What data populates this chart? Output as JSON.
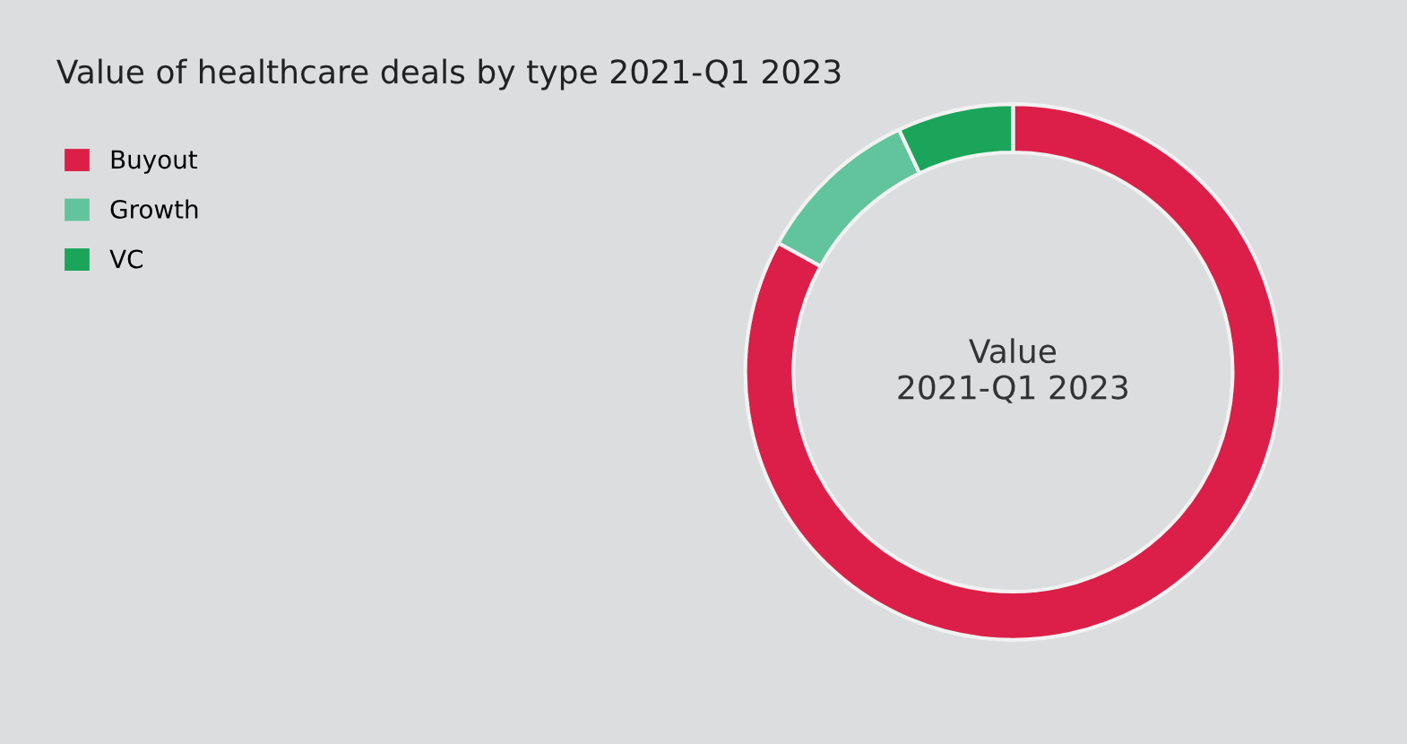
{
  "chart_data": {
    "type": "donut",
    "title": "Value of healthcare deals by type 2021-Q1 2023",
    "categories": [
      "Buyout",
      "Growth",
      "VC"
    ],
    "values": [
      83,
      10,
      7
    ],
    "colors": [
      "#dc1f48",
      "#62c49c",
      "#1aa55a"
    ],
    "annotations": [
      "Value\n2021-Q1 2023"
    ],
    "legend": "top left"
  }
}
